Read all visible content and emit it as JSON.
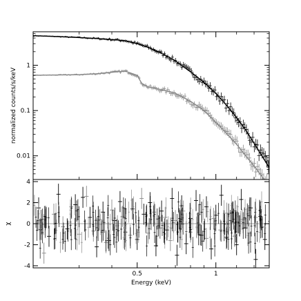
{
  "chart_data": [
    {
      "type": "line",
      "panel": "spectrum",
      "ylabel": "normalized counts/s/keV",
      "yscale": "log",
      "ylim": [
        0.003,
        5.5
      ],
      "xscale": "log",
      "xlim": [
        0.2,
        1.6
      ],
      "yticks": [
        {
          "value": 0.01,
          "label": "0.01"
        },
        {
          "value": 0.1,
          "label": "0.1"
        },
        {
          "value": 1,
          "label": "1"
        }
      ],
      "series": [
        {
          "color": "#000000",
          "x": [
            0.2,
            0.25,
            0.3,
            0.35,
            0.4,
            0.45,
            0.5,
            0.55,
            0.6,
            0.65,
            0.7,
            0.8,
            0.9,
            1.0,
            1.1,
            1.2,
            1.3,
            1.4,
            1.5,
            1.6
          ],
          "y": [
            4.5,
            4.3,
            4.1,
            3.9,
            3.7,
            3.5,
            3.0,
            2.5,
            2.0,
            1.6,
            1.25,
            0.72,
            0.42,
            0.24,
            0.13,
            0.07,
            0.037,
            0.019,
            0.01,
            0.0055
          ]
        },
        {
          "color": "#888888",
          "x": [
            0.2,
            0.25,
            0.3,
            0.35,
            0.4,
            0.45,
            0.5,
            0.52,
            0.55,
            0.6,
            0.65,
            0.7,
            0.8,
            0.9,
            1.0,
            1.1,
            1.2,
            1.3,
            1.4,
            1.5,
            1.6
          ],
          "y": [
            0.6,
            0.61,
            0.62,
            0.65,
            0.7,
            0.74,
            0.6,
            0.4,
            0.33,
            0.3,
            0.27,
            0.24,
            0.16,
            0.1,
            0.055,
            0.031,
            0.018,
            0.01,
            0.006,
            0.0035,
            0.002
          ]
        }
      ]
    },
    {
      "type": "scatter",
      "panel": "residuals",
      "ylabel": "χ",
      "xlabel": "Energy (keV)",
      "xscale": "log",
      "xlim": [
        0.2,
        1.6
      ],
      "ylim": [
        -4.2,
        4.2
      ],
      "xticks": [
        {
          "value": 0.5,
          "label": "0.5"
        },
        {
          "value": 1,
          "label": "1"
        }
      ],
      "yticks": [
        {
          "value": -4,
          "label": "-4"
        },
        {
          "value": -2,
          "label": "-2"
        },
        {
          "value": 0,
          "label": "0"
        },
        {
          "value": 2,
          "label": "2"
        },
        {
          "value": 4,
          "label": "4"
        }
      ],
      "series": [
        {
          "color": "#000000",
          "x": [
            0.21,
            0.23,
            0.25,
            0.27,
            0.29,
            0.31,
            0.33,
            0.35,
            0.37,
            0.39,
            0.41,
            0.43,
            0.45,
            0.48,
            0.5,
            0.53,
            0.56,
            0.59,
            0.62,
            0.65,
            0.68,
            0.71,
            0.74,
            0.77,
            0.8,
            0.84,
            0.88,
            0.92,
            0.96,
            1.0,
            1.05,
            1.1,
            1.15,
            1.2,
            1.25,
            1.3,
            1.36,
            1.42,
            1.48,
            1.54
          ],
          "y": [
            1.5,
            -1.2,
            2.8,
            -0.5,
            1.8,
            2.5,
            0.6,
            -2.2,
            1.1,
            -1.6,
            0.3,
            2.1,
            -0.8,
            1.4,
            -1.5,
            0.9,
            2.0,
            -2.1,
            1.2,
            -0.6,
            2.4,
            -3.0,
            1.7,
            -1.9,
            0.5,
            2.2,
            -1.1,
            1.6,
            -2.4,
            0.8,
            2.7,
            -1.3,
            1.0,
            -2.0,
            2.3,
            -0.4,
            1.5,
            -3.4,
            0.7,
            -1.5
          ]
        },
        {
          "color": "#888888",
          "x": [
            0.22,
            0.24,
            0.26,
            0.28,
            0.3,
            0.32,
            0.34,
            0.36,
            0.38,
            0.4,
            0.42,
            0.44,
            0.47,
            0.52,
            0.55,
            0.58,
            0.61,
            0.64,
            0.67,
            0.7,
            0.75,
            0.8,
            0.86,
            0.92,
            0.98,
            1.04,
            1.1,
            1.18,
            1.26,
            1.34,
            1.42,
            1.5
          ],
          "y": [
            -2.8,
            0.9,
            -0.3,
            1.6,
            -1.0,
            2.6,
            -0.7,
            0.4,
            -1.8,
            1.3,
            -0.2,
            0.7,
            -1.1,
            2.4,
            -0.9,
            1.1,
            -0.4,
            0.6,
            -1.6,
            0.3,
            1.2,
            -0.8,
            0.9,
            -1.4,
            0.5,
            -0.6,
            1.0,
            -1.2,
            0.4,
            -0.9,
            0.6,
            -0.3
          ]
        }
      ]
    }
  ]
}
